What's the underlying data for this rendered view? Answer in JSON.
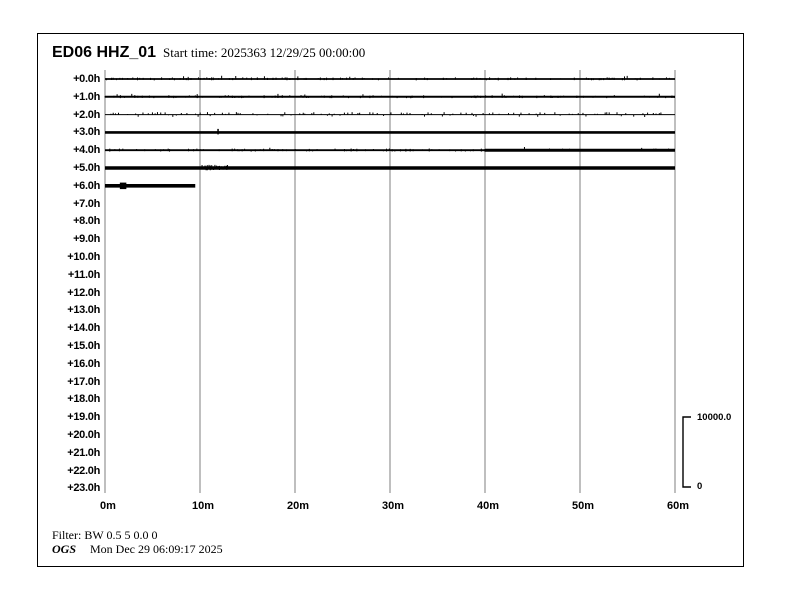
{
  "header": {
    "station": "ED06 HHZ_01",
    "start_time_label": "Start time: 2025363 12/29/25 00:00:00"
  },
  "chart_data": {
    "type": "line",
    "subtype": "helicorder-seismogram",
    "title": "ED06 HHZ_01",
    "start_time": "2025363 12/29/25 00:00:00",
    "minutes_per_line": 60,
    "hours_displayed": 24,
    "x_ticks": [
      "0m",
      "10m",
      "20m",
      "30m",
      "40m",
      "50m",
      "60m"
    ],
    "x_range_minutes": [
      0,
      60
    ],
    "row_labels": [
      "+0.0h",
      "+1.0h",
      "+2.0h",
      "+3.0h",
      "+4.0h",
      "+5.0h",
      "+6.0h",
      "+7.0h",
      "+8.0h",
      "+9.0h",
      "+10.0h",
      "+11.0h",
      "+12.0h",
      "+13.0h",
      "+14.0h",
      "+15.0h",
      "+16.0h",
      "+17.0h",
      "+18.0h",
      "+19.0h",
      "+20.0h",
      "+21.0h",
      "+22.0h",
      "+23.0h"
    ],
    "grid": true,
    "gridline_color": "#7f7f7f",
    "trace_color": "#000000",
    "traces": [
      {
        "row": "+0.0h",
        "start_min": 0,
        "end_min": 60,
        "style": "noisy",
        "thickness": 1.8
      },
      {
        "row": "+1.0h",
        "start_min": 0,
        "end_min": 60,
        "style": "noisy",
        "thickness": 2
      },
      {
        "row": "+2.0h",
        "start_min": 0,
        "end_min": 60,
        "style": "fuzzy",
        "thickness": 1
      },
      {
        "row": "+3.0h",
        "start_min": 0,
        "end_min": 60,
        "style": "solid",
        "thickness": 2.6,
        "spike_min": 11.9
      },
      {
        "row": "+4.0h",
        "start_min": 0,
        "end_min": 60,
        "style": "noisy",
        "thickness": 1.8,
        "thick_after_min": 40,
        "thick_width": 3
      },
      {
        "row": "+5.0h",
        "start_min": 0,
        "end_min": 60,
        "style": "solid",
        "thickness": 3.6,
        "burst_min": [
          10,
          13
        ]
      },
      {
        "row": "+6.0h",
        "start_min": 0,
        "end_min": 9.5,
        "style": "solid",
        "thickness": 3.6,
        "blob_min": 1.9
      }
    ],
    "amplitude_scale": {
      "max_label": "10000.0",
      "min_label": "0"
    }
  },
  "footer": {
    "filter_label": "Filter: BW 0.5 5 0.0 0",
    "agency": "OGS",
    "generated_at": "Mon Dec 29 06:09:17 2025"
  }
}
